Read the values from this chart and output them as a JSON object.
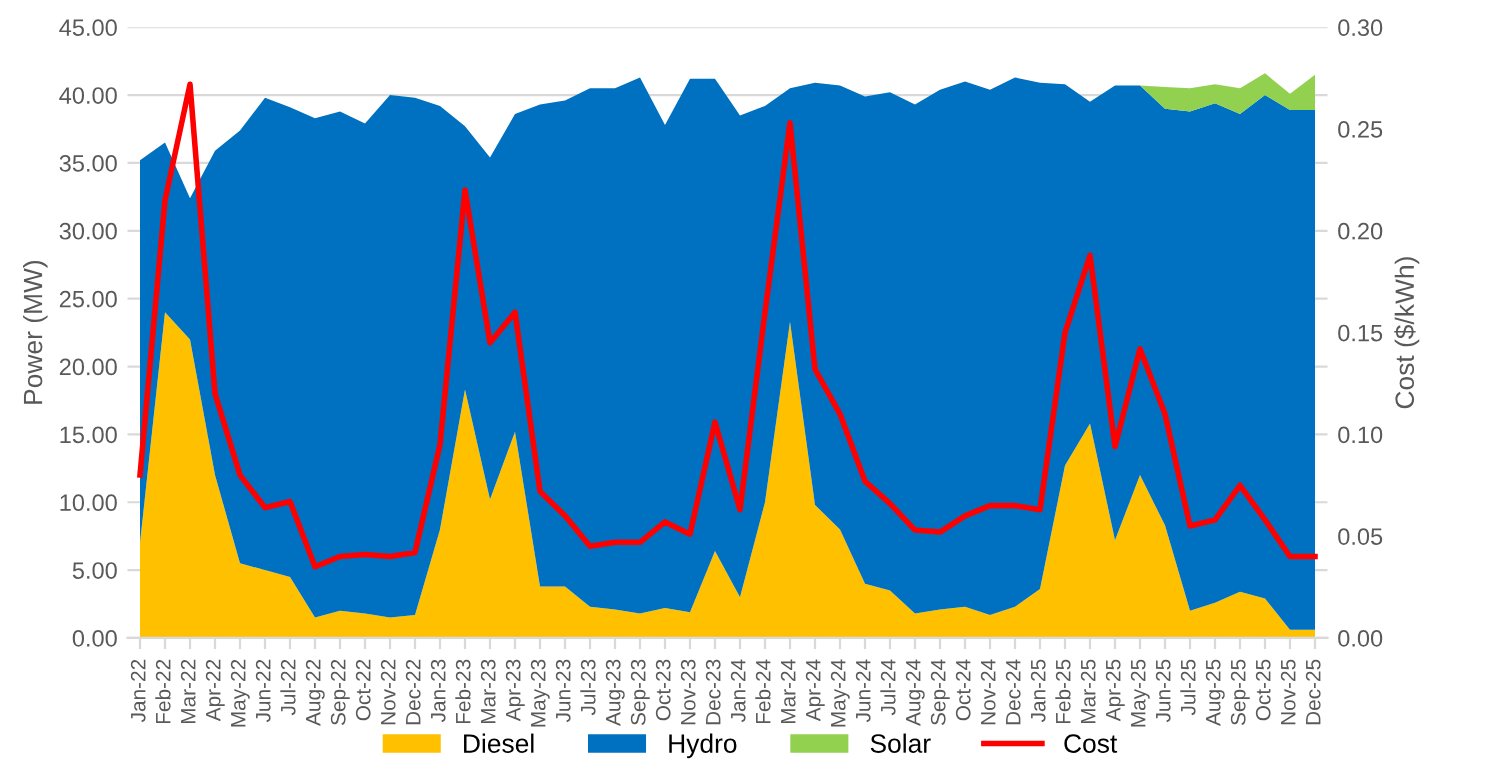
{
  "chart_data": {
    "type": "area",
    "stacked": true,
    "ylabel": "Power (MW)",
    "y2label": "Cost ($/kWh)",
    "categories": [
      "Jan-22",
      "Feb-22",
      "Mar-22",
      "Apr-22",
      "May-22",
      "Jun-22",
      "Jul-22",
      "Aug-22",
      "Sep-22",
      "Oct-22",
      "Nov-22",
      "Dec-22",
      "Jan-23",
      "Feb-23",
      "Mar-23",
      "Apr-23",
      "May-23",
      "Jun-23",
      "Jul-23",
      "Aug-23",
      "Sep-23",
      "Oct-23",
      "Nov-23",
      "Dec-23",
      "Jan-24",
      "Feb-24",
      "Mar-24",
      "Apr-24",
      "May-24",
      "Jun-24",
      "Jul-24",
      "Aug-24",
      "Sep-24",
      "Oct-24",
      "Nov-24",
      "Dec-24",
      "Jan-25",
      "Feb-25",
      "Mar-25",
      "Apr-25",
      "May-25",
      "Jun-25",
      "Jul-25",
      "Aug-25",
      "Sep-25",
      "Oct-25",
      "Nov-25",
      "Dec-25"
    ],
    "series": [
      {
        "name": "Diesel",
        "color": "#ffc000",
        "values": [
          7.0,
          24.0,
          22.0,
          12.0,
          5.5,
          5.0,
          4.5,
          1.5,
          2.0,
          1.8,
          1.5,
          1.7,
          8.0,
          18.3,
          10.2,
          15.2,
          3.8,
          3.8,
          2.3,
          2.1,
          1.8,
          2.2,
          1.9,
          6.4,
          3.0,
          10.0,
          23.3,
          9.8,
          8.0,
          4.0,
          3.5,
          1.8,
          2.1,
          2.3,
          1.7,
          2.3,
          3.6,
          12.7,
          15.8,
          7.2,
          12.0,
          8.3,
          2.0,
          2.6,
          3.4,
          2.9,
          0.6,
          0.6
        ]
      },
      {
        "name": "Hydro",
        "color": "#0070c0",
        "values": [
          28.2,
          12.5,
          10.4,
          23.9,
          31.9,
          34.8,
          34.6,
          36.8,
          36.8,
          36.1,
          38.5,
          38.1,
          31.2,
          19.4,
          25.2,
          23.4,
          35.5,
          35.8,
          38.2,
          38.4,
          39.5,
          35.6,
          39.3,
          34.8,
          35.5,
          29.2,
          17.2,
          31.1,
          32.7,
          35.9,
          36.7,
          37.5,
          38.3,
          38.7,
          38.7,
          39.0,
          37.3,
          28.1,
          23.7,
          33.5,
          28.7,
          30.7,
          36.8,
          36.8,
          35.2,
          37.1,
          38.3,
          38.3
        ]
      },
      {
        "name": "Solar",
        "color": "#92d050",
        "values": [
          0,
          0,
          0,
          0,
          0,
          0,
          0,
          0,
          0,
          0,
          0,
          0,
          0,
          0,
          0,
          0,
          0,
          0,
          0,
          0,
          0,
          0,
          0,
          0,
          0,
          0,
          0,
          0,
          0,
          0,
          0,
          0,
          0,
          0,
          0,
          0,
          0,
          0,
          0,
          0,
          0,
          1.6,
          1.7,
          1.4,
          1.9,
          1.6,
          1.2,
          2.6
        ]
      },
      {
        "name": "Cost",
        "type": "line",
        "axis": "y2",
        "color": "#ff0000",
        "values": [
          0.08,
          0.215,
          0.272,
          0.12,
          0.08,
          0.064,
          0.067,
          0.035,
          0.04,
          0.041,
          0.04,
          0.042,
          0.095,
          0.22,
          0.145,
          0.16,
          0.072,
          0.06,
          0.045,
          0.047,
          0.047,
          0.057,
          0.051,
          0.106,
          0.063,
          0.16,
          0.253,
          0.132,
          0.11,
          0.077,
          0.066,
          0.053,
          0.052,
          0.06,
          0.065,
          0.065,
          0.063,
          0.15,
          0.188,
          0.094,
          0.142,
          0.11,
          0.055,
          0.058,
          0.075,
          0.058,
          0.04,
          0.04
        ]
      }
    ],
    "ylim": [
      0,
      45
    ],
    "yticks": [
      {
        "value": 0,
        "label": "0.00"
      },
      {
        "value": 5,
        "label": "5.00"
      },
      {
        "value": 10,
        "label": "10.00"
      },
      {
        "value": 15,
        "label": "15.00"
      },
      {
        "value": 20,
        "label": "20.00"
      },
      {
        "value": 25,
        "label": "25.00"
      },
      {
        "value": 30,
        "label": "30.00"
      },
      {
        "value": 35,
        "label": "35.00"
      },
      {
        "value": 40,
        "label": "40.00"
      },
      {
        "value": 45,
        "label": "45.00"
      }
    ],
    "y2lim": [
      0,
      0.3
    ],
    "y2ticks": [
      {
        "value": 0,
        "label": "0.00"
      },
      {
        "value": 0.05,
        "label": "0.05"
      },
      {
        "value": 0.1,
        "label": "0.10"
      },
      {
        "value": 0.15,
        "label": "0.15"
      },
      {
        "value": 0.2,
        "label": "0.20"
      },
      {
        "value": 0.25,
        "label": "0.25"
      },
      {
        "value": 0.3,
        "label": "0.30"
      }
    ],
    "grid": "y",
    "legend": "bottom",
    "line_style": "solid"
  }
}
